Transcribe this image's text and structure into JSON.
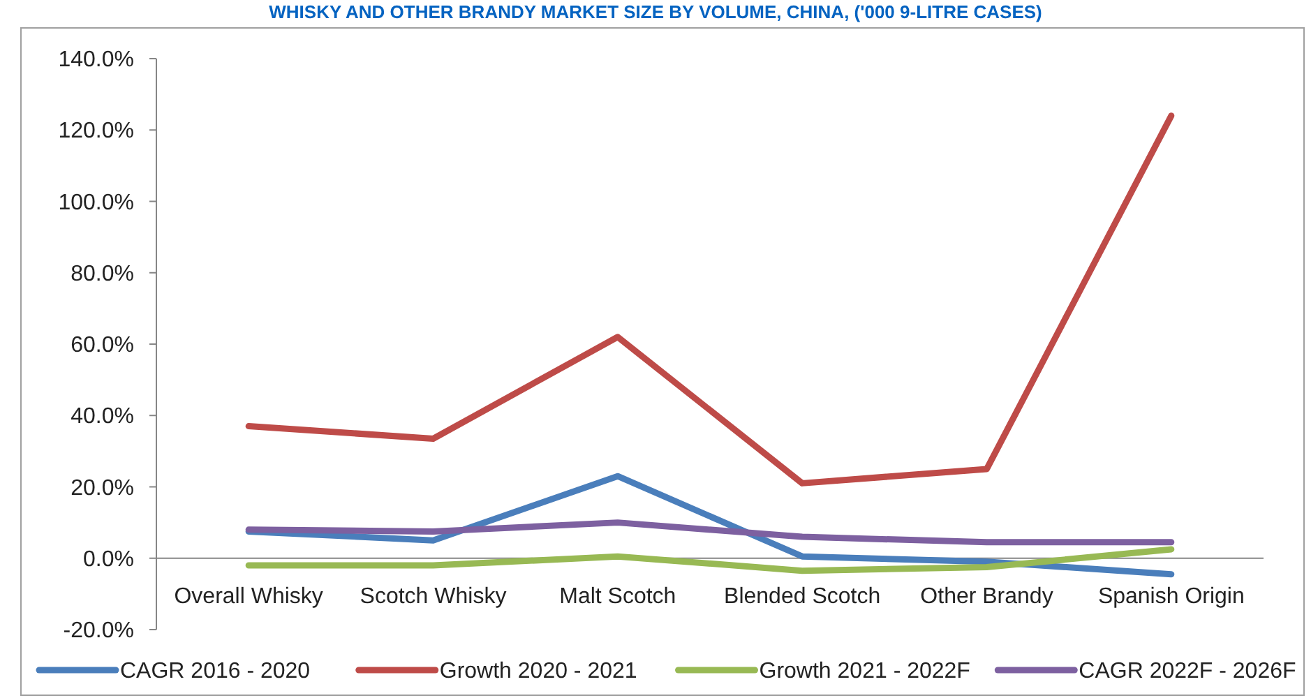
{
  "chart_data": {
    "type": "line",
    "title": "WHISKY AND OTHER BRANDY MARKET SIZE BY VOLUME, CHINA, ('000 9-LITRE CASES)",
    "categories": [
      "Overall Whisky",
      "Scotch Whisky",
      "Malt Scotch",
      "Blended Scotch",
      "Other Brandy",
      "Spanish Origin"
    ],
    "series": [
      {
        "name": "CAGR 2016 - 2020",
        "color": "#4a7ebb",
        "values": [
          7.5,
          5,
          23,
          0.5,
          -1,
          -4.5
        ]
      },
      {
        "name": "Growth 2020 - 2021",
        "color": "#be4b48",
        "values": [
          37,
          33.5,
          62,
          21,
          25,
          124
        ]
      },
      {
        "name": "Growth 2021 - 2022F",
        "color": "#98b954",
        "values": [
          -2,
          -2,
          0.5,
          -3.5,
          -2.5,
          2.5
        ]
      },
      {
        "name": "CAGR 2022F - 2026F",
        "color": "#7d60a0",
        "values": [
          8,
          7.5,
          10,
          6,
          4.5,
          4.5
        ]
      }
    ],
    "ylim": [
      -20,
      140
    ],
    "yticks": [
      {
        "value": -20,
        "label": "-20.0%"
      },
      {
        "value": 0,
        "label": "0.0%"
      },
      {
        "value": 20,
        "label": "20.0%"
      },
      {
        "value": 40,
        "label": "40.0%"
      },
      {
        "value": 60,
        "label": "60.0%"
      },
      {
        "value": 80,
        "label": "80.0%"
      },
      {
        "value": 100,
        "label": "100.0%"
      },
      {
        "value": 120,
        "label": "120.0%"
      },
      {
        "value": 140,
        "label": "140.0%"
      }
    ],
    "grid": false,
    "legend": "bottom",
    "marker": "none",
    "line_style": "solid"
  }
}
